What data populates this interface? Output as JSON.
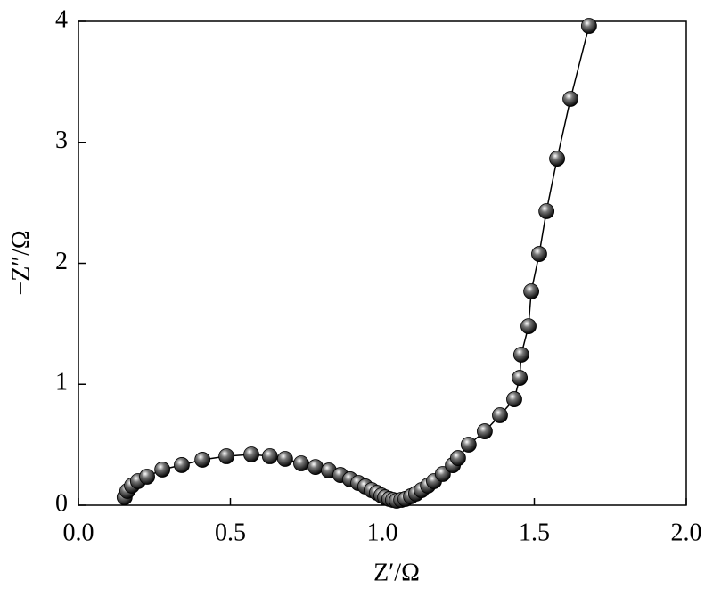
{
  "chart_data": {
    "type": "line",
    "color": "#000000",
    "x_label": "Z′/Ω",
    "y_label": "−Z″/Ω",
    "x": [
      0.152,
      0.161,
      0.176,
      0.196,
      0.226,
      0.276,
      0.34,
      0.408,
      0.487,
      0.569,
      0.63,
      0.68,
      0.733,
      0.78,
      0.824,
      0.862,
      0.894,
      0.921,
      0.944,
      0.965,
      0.982,
      0.997,
      1.009,
      1.023,
      1.035,
      1.047,
      1.062,
      1.076,
      1.094,
      1.111,
      1.129,
      1.15,
      1.17,
      1.199,
      1.232,
      1.249,
      1.284,
      1.337,
      1.387,
      1.434,
      1.452,
      1.457,
      1.481,
      1.49,
      1.516,
      1.54,
      1.575,
      1.619,
      1.68
    ],
    "values": [
      0.066,
      0.118,
      0.162,
      0.199,
      0.236,
      0.295,
      0.332,
      0.376,
      0.405,
      0.42,
      0.405,
      0.383,
      0.346,
      0.316,
      0.287,
      0.25,
      0.214,
      0.184,
      0.155,
      0.125,
      0.103,
      0.081,
      0.066,
      0.052,
      0.044,
      0.037,
      0.044,
      0.052,
      0.074,
      0.096,
      0.125,
      0.162,
      0.199,
      0.258,
      0.331,
      0.39,
      0.501,
      0.611,
      0.744,
      0.876,
      1.053,
      1.245,
      1.48,
      1.768,
      2.077,
      2.431,
      2.865,
      3.359,
      3.963
    ],
    "xlim": [
      0,
      2
    ],
    "ylim": [
      0,
      4
    ],
    "xticks": [
      {
        "value": 0,
        "label": "0.0"
      },
      0.5,
      {
        "value": 1,
        "label": "1.0"
      },
      1.5,
      {
        "value": 2,
        "label": "2.0"
      }
    ],
    "yticks": [
      0,
      1,
      2,
      3,
      4
    ]
  }
}
